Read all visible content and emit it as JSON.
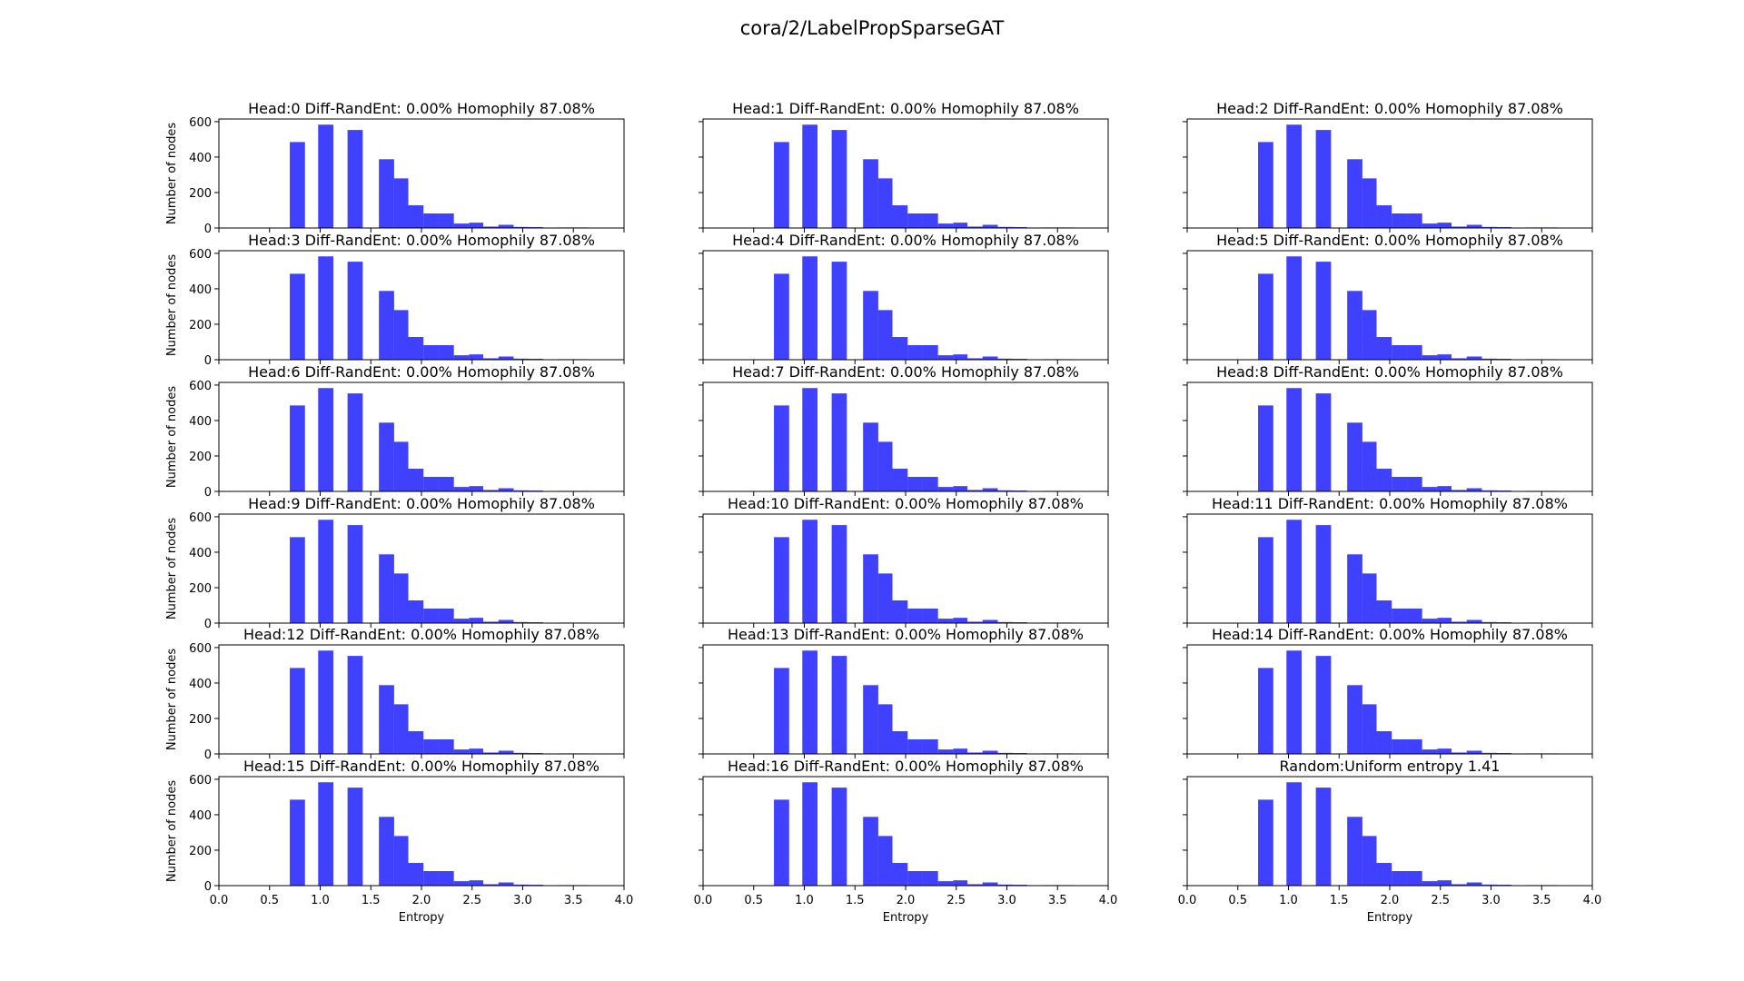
{
  "figure": {
    "suptitle": "cora/2/LabelPropSparseGAT",
    "bar_color": "#0000ff",
    "bar_opacity": 0.75
  },
  "chart_data": {
    "type": "bar",
    "layout": "6 rows x 3 columns grid of histograms",
    "xlabel": "Entropy",
    "ylabel": "Number of nodes",
    "xlim": [
      0.0,
      4.0
    ],
    "ylim": [
      0,
      615
    ],
    "xticks": [
      "0.0",
      "0.5",
      "1.0",
      "1.5",
      "2.0",
      "2.5",
      "3.0",
      "3.5",
      "4.0"
    ],
    "yticks": [
      "0",
      "200",
      "400",
      "600"
    ],
    "bins": [
      {
        "x0": 0.7,
        "x1": 0.85,
        "count": 485
      },
      {
        "x0": 0.98,
        "x1": 1.13,
        "count": 583
      },
      {
        "x0": 1.27,
        "x1": 1.42,
        "count": 553
      },
      {
        "x0": 1.58,
        "x1": 1.73,
        "count": 388
      },
      {
        "x0": 1.73,
        "x1": 1.87,
        "count": 280
      },
      {
        "x0": 1.87,
        "x1": 2.02,
        "count": 128
      },
      {
        "x0": 2.02,
        "x1": 2.17,
        "count": 82
      },
      {
        "x0": 2.17,
        "x1": 2.32,
        "count": 82
      },
      {
        "x0": 2.32,
        "x1": 2.47,
        "count": 25
      },
      {
        "x0": 2.47,
        "x1": 2.61,
        "count": 30
      },
      {
        "x0": 2.61,
        "x1": 2.76,
        "count": 8
      },
      {
        "x0": 2.76,
        "x1": 2.91,
        "count": 18
      },
      {
        "x0": 2.91,
        "x1": 3.06,
        "count": 6
      },
      {
        "x0": 3.06,
        "x1": 3.2,
        "count": 5
      },
      {
        "x0": 3.2,
        "x1": 3.35,
        "count": 2
      },
      {
        "x0": 3.35,
        "x1": 3.5,
        "count": 3
      },
      {
        "x0": 3.5,
        "x1": 3.65,
        "count": 3
      },
      {
        "x0": 3.65,
        "x1": 3.8,
        "count": 1
      },
      {
        "x0": 3.8,
        "x1": 3.95,
        "count": 1
      }
    ],
    "panels": [
      {
        "title": "Head:0 Diff-RandEnt: 0.00% Homophily 87.08%"
      },
      {
        "title": "Head:1 Diff-RandEnt: 0.00% Homophily 87.08%"
      },
      {
        "title": "Head:2 Diff-RandEnt: 0.00% Homophily 87.08%"
      },
      {
        "title": "Head:3 Diff-RandEnt: 0.00% Homophily 87.08%"
      },
      {
        "title": "Head:4 Diff-RandEnt: 0.00% Homophily 87.08%"
      },
      {
        "title": "Head:5 Diff-RandEnt: 0.00% Homophily 87.08%"
      },
      {
        "title": "Head:6 Diff-RandEnt: 0.00% Homophily 87.08%"
      },
      {
        "title": "Head:7 Diff-RandEnt: 0.00% Homophily 87.08%"
      },
      {
        "title": "Head:8 Diff-RandEnt: 0.00% Homophily 87.08%"
      },
      {
        "title": "Head:9 Diff-RandEnt: 0.00% Homophily 87.08%"
      },
      {
        "title": "Head:10 Diff-RandEnt: 0.00% Homophily 87.08%"
      },
      {
        "title": "Head:11 Diff-RandEnt: 0.00% Homophily 87.08%"
      },
      {
        "title": "Head:12 Diff-RandEnt: 0.00% Homophily 87.08%"
      },
      {
        "title": "Head:13 Diff-RandEnt: 0.00% Homophily 87.08%"
      },
      {
        "title": "Head:14 Diff-RandEnt: 0.00% Homophily 87.08%"
      },
      {
        "title": "Head:15 Diff-RandEnt: 0.00% Homophily 87.08%"
      },
      {
        "title": "Head:16 Diff-RandEnt: 0.00% Homophily 87.08%"
      },
      {
        "title": "Random:Uniform entropy 1.41"
      }
    ]
  }
}
